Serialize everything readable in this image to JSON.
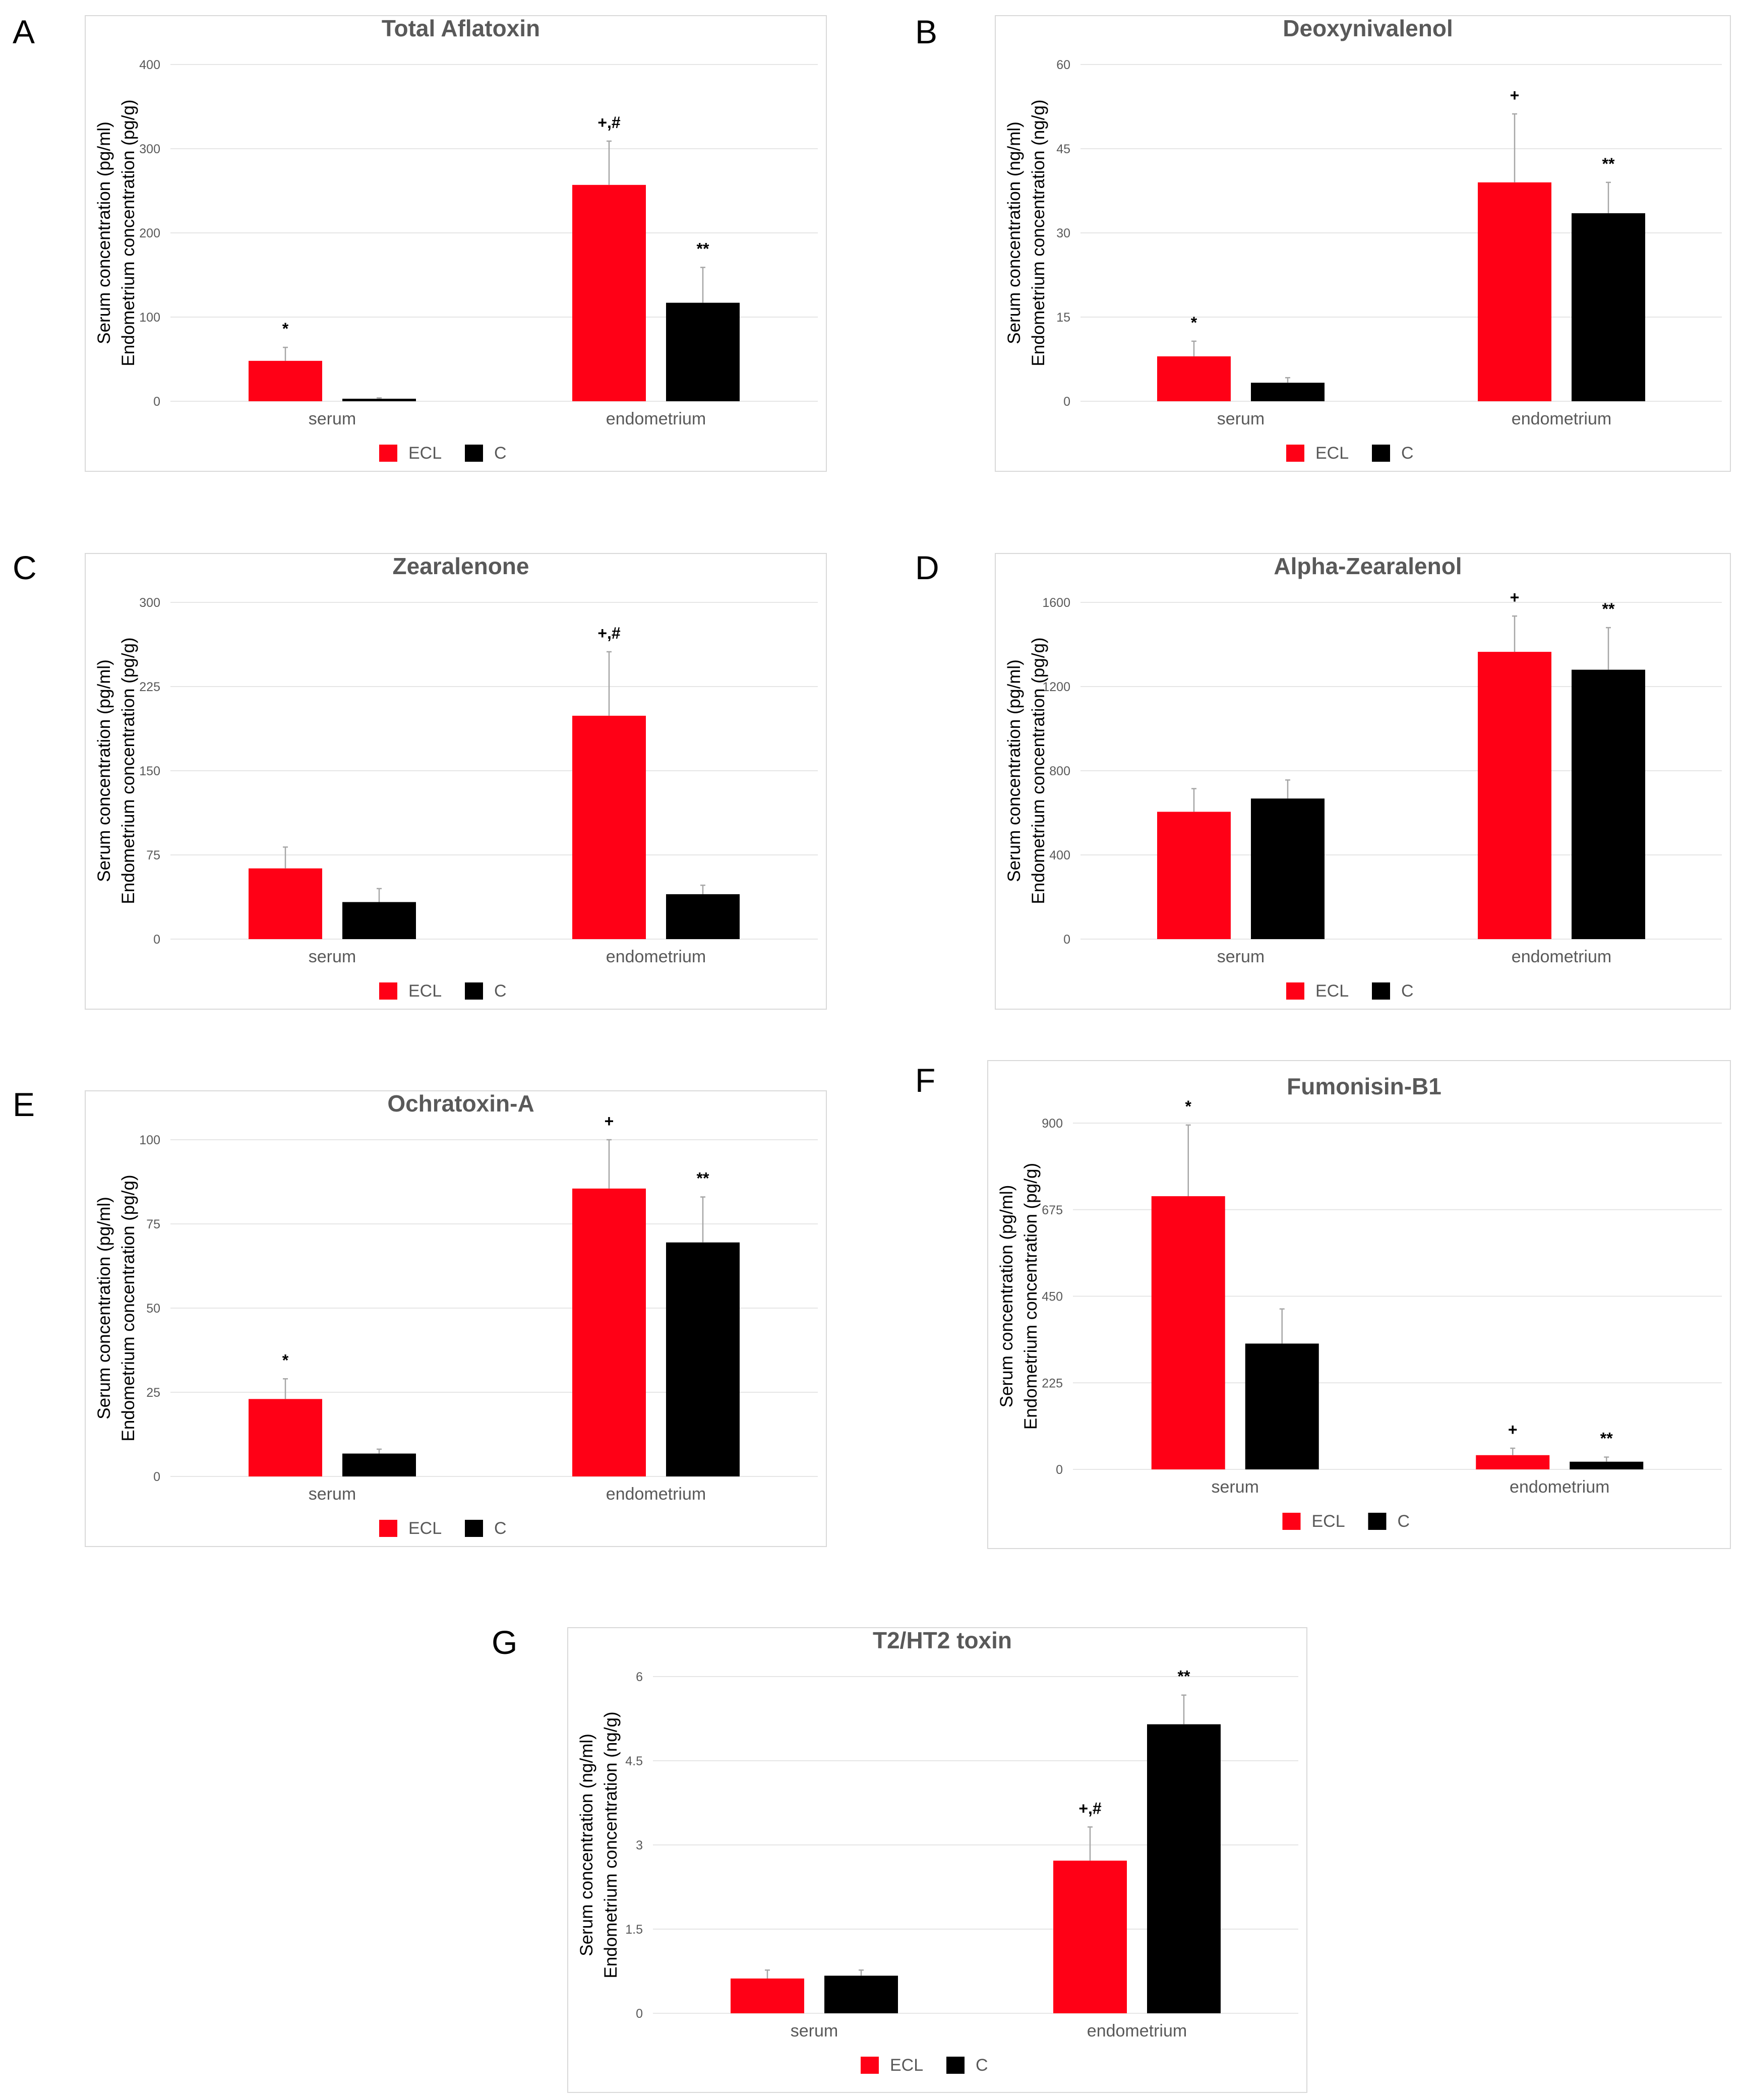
{
  "legend": {
    "ecl": "ECL",
    "c": "C"
  },
  "colors": {
    "ecl": "#ff0016",
    "c": "#000000",
    "grid": "#e6e6e6",
    "text": "#595959",
    "title": "#595959",
    "error": "#a6a6a6"
  },
  "chart_data": [
    {
      "letter": "A",
      "type": "bar",
      "title": "Total Aflatoxin",
      "ylabel_line1": "Serum concentration (pg/ml)",
      "ylabel_line2": "Endometrium concentration (pg/g)",
      "categories": [
        "serum",
        "endometrium"
      ],
      "ylim": [
        0,
        400
      ],
      "yticks": [
        "0",
        "100",
        "200",
        "300",
        "400"
      ],
      "tick_values": [
        0,
        100,
        200,
        300,
        400
      ],
      "series": [
        {
          "name": "ECL",
          "values": [
            48,
            257
          ],
          "errors": [
            16,
            52
          ],
          "marks": [
            "*",
            "+,#"
          ]
        },
        {
          "name": "C",
          "values": [
            3,
            117
          ],
          "errors": [
            1,
            42
          ],
          "marks": [
            "",
            "**"
          ]
        }
      ]
    },
    {
      "letter": "B",
      "type": "bar",
      "title": "Deoxynivalenol",
      "ylabel_line1": "Serum concentration (ng/ml)",
      "ylabel_line2": "Endometrium concentration (ng/g)",
      "categories": [
        "serum",
        "endometrium"
      ],
      "ylim": [
        0,
        60
      ],
      "yticks": [
        "0",
        "15",
        "30",
        "45",
        "60"
      ],
      "tick_values": [
        0,
        15,
        30,
        45,
        60
      ],
      "series": [
        {
          "name": "ECL",
          "values": [
            8,
            39
          ],
          "errors": [
            2.7,
            12.2
          ],
          "marks": [
            "*",
            "+"
          ]
        },
        {
          "name": "C",
          "values": [
            3.3,
            33.5
          ],
          "errors": [
            0.9,
            5.5
          ],
          "marks": [
            "",
            "**"
          ]
        }
      ]
    },
    {
      "letter": "C",
      "type": "bar",
      "title": "Zearalenone",
      "ylabel_line1": "Serum concentration (pg/ml)",
      "ylabel_line2": "Endometrium concentration (pg/g)",
      "categories": [
        "serum",
        "endometrium"
      ],
      "ylim": [
        0,
        300
      ],
      "yticks": [
        "0",
        "75",
        "150",
        "225",
        "300"
      ],
      "tick_values": [
        0,
        75,
        150,
        225,
        300
      ],
      "series": [
        {
          "name": "ECL",
          "values": [
            63,
            199
          ],
          "errors": [
            19,
            57
          ],
          "marks": [
            "",
            "+,#"
          ]
        },
        {
          "name": "C",
          "values": [
            33,
            40
          ],
          "errors": [
            12,
            8
          ],
          "marks": [
            "",
            ""
          ]
        }
      ]
    },
    {
      "letter": "D",
      "type": "bar",
      "title": "Alpha-Zearalenol",
      "ylabel_line1": "Serum concentration (pg/ml)",
      "ylabel_line2": "Endometrium concentration (pg/g)",
      "categories": [
        "serum",
        "endometrium"
      ],
      "ylim": [
        0,
        1600
      ],
      "yticks": [
        "0",
        "400",
        "800",
        "1200",
        "1600"
      ],
      "tick_values": [
        0,
        400,
        800,
        1200,
        1600
      ],
      "series": [
        {
          "name": "ECL",
          "values": [
            605,
            1365
          ],
          "errors": [
            110,
            170
          ],
          "marks": [
            "",
            "+"
          ]
        },
        {
          "name": "C",
          "values": [
            668,
            1280
          ],
          "errors": [
            88,
            200
          ],
          "marks": [
            "",
            "**"
          ]
        }
      ]
    },
    {
      "letter": "E",
      "type": "bar",
      "title": "Ochratoxin-A",
      "ylabel_line1": "Serum concentration (pg/ml)",
      "ylabel_line2": "Endometrium concentration (pg/g)",
      "categories": [
        "serum",
        "endometrium"
      ],
      "ylim": [
        0,
        100
      ],
      "yticks": [
        "0",
        "25",
        "50",
        "75",
        "100"
      ],
      "tick_values": [
        0,
        25,
        50,
        75,
        100
      ],
      "series": [
        {
          "name": "ECL",
          "values": [
            23,
            85.5
          ],
          "errors": [
            6,
            14.5
          ],
          "marks": [
            "*",
            "+"
          ]
        },
        {
          "name": "C",
          "values": [
            6.8,
            69.5
          ],
          "errors": [
            1.3,
            13.5
          ],
          "marks": [
            "",
            "**"
          ]
        }
      ]
    },
    {
      "letter": "F",
      "type": "bar",
      "title": "Fumonisin-B1",
      "ylabel_line1": "Serum concentration (pg/ml)",
      "ylabel_line2": "Endometrium concentration (pg/g)",
      "categories": [
        "serum",
        "endometrium"
      ],
      "ylim": [
        0,
        900
      ],
      "yticks": [
        "0",
        "225",
        "450",
        "675",
        "900"
      ],
      "tick_values": [
        0,
        225,
        450,
        675,
        900
      ],
      "series": [
        {
          "name": "ECL",
          "values": [
            710,
            37
          ],
          "errors": [
            185,
            18
          ],
          "marks": [
            "*",
            "+"
          ]
        },
        {
          "name": "C",
          "values": [
            327,
            20
          ],
          "errors": [
            90,
            12
          ],
          "marks": [
            "",
            "**"
          ]
        }
      ]
    },
    {
      "letter": "G",
      "type": "bar",
      "title": "T2/HT2 toxin",
      "ylabel_line1": "Serum concentration (ng/ml)",
      "ylabel_line2": "Endometrium concentration (ng/g)",
      "categories": [
        "serum",
        "endometrium"
      ],
      "ylim": [
        0,
        6
      ],
      "yticks": [
        "0",
        "1.5",
        "3",
        "4.5",
        "6"
      ],
      "tick_values": [
        0,
        1.5,
        3,
        4.5,
        6
      ],
      "series": [
        {
          "name": "ECL",
          "values": [
            0.62,
            2.72
          ],
          "errors": [
            0.15,
            0.6
          ],
          "marks": [
            "",
            "+,#"
          ]
        },
        {
          "name": "C",
          "values": [
            0.67,
            5.15
          ],
          "errors": [
            0.1,
            0.52
          ],
          "marks": [
            "",
            "**"
          ]
        }
      ]
    }
  ]
}
